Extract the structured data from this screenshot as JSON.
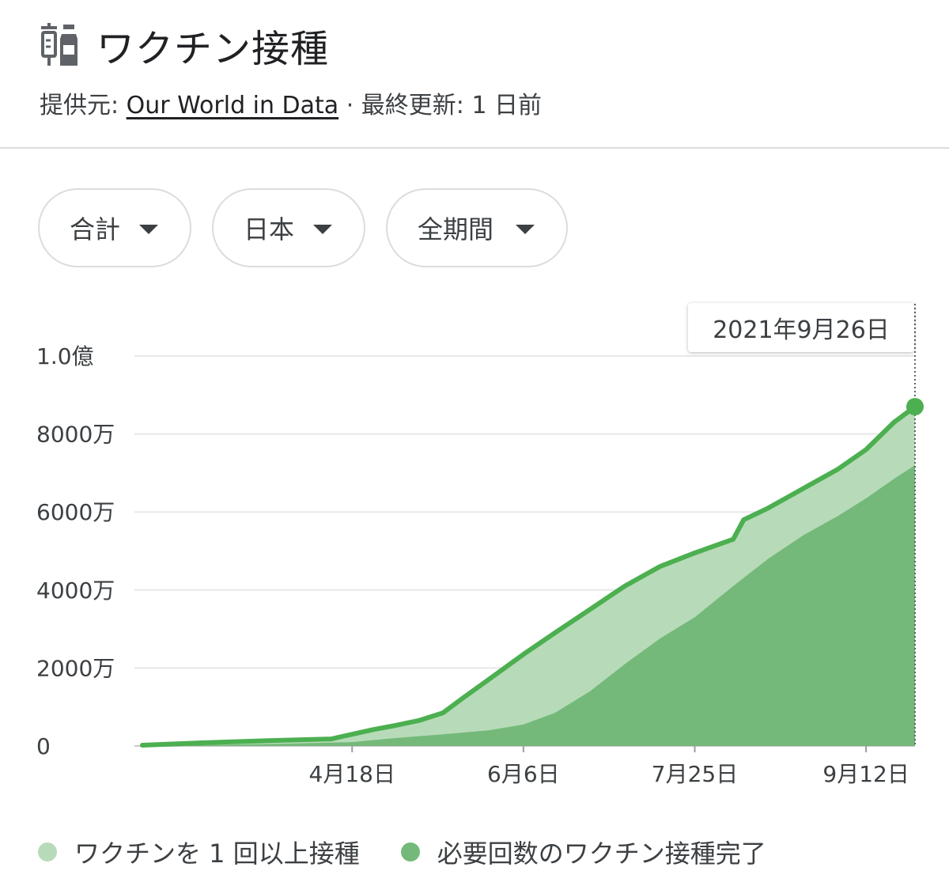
{
  "header": {
    "title": "ワクチン接種",
    "icon": "vaccine-icon",
    "source_prefix": "提供元: ",
    "source_name": "Our World in Data",
    "update_text": " · 最終更新: 1 日前"
  },
  "filters": [
    {
      "label": "合計"
    },
    {
      "label": "日本"
    },
    {
      "label": "全期間"
    }
  ],
  "tooltip": {
    "date": "2021年9月26日"
  },
  "colors": {
    "line": "#4caf50",
    "light_area": "#b7dbb8",
    "dark_area": "#74b979",
    "grid": "#e8e8e8"
  },
  "chart_data": {
    "type": "area",
    "title": "",
    "xlabel": "",
    "ylabel": "",
    "x_start": "2021-02-17",
    "x_end": "2021-09-26",
    "x_ticks": [
      {
        "date": "2021-04-18",
        "label": "4月18日"
      },
      {
        "date": "2021-06-06",
        "label": "6月6日"
      },
      {
        "date": "2021-07-25",
        "label": "7月25日"
      },
      {
        "date": "2021-09-12",
        "label": "9月12日"
      }
    ],
    "y_ticks": [
      {
        "value": 0,
        "label": "0"
      },
      {
        "value": 20000000,
        "label": "2000万"
      },
      {
        "value": 40000000,
        "label": "4000万"
      },
      {
        "value": 60000000,
        "label": "6000万"
      },
      {
        "value": 80000000,
        "label": "8000万"
      },
      {
        "value": 100000000,
        "label": "1.0億"
      }
    ],
    "ylim": [
      0,
      100000000
    ],
    "grid": true,
    "legend": "bottom",
    "series": [
      {
        "name": "ワクチンを 1 回以上接種",
        "dates": [
          "2021-02-17",
          "2021-03-06",
          "2021-03-26",
          "2021-04-12",
          "2021-04-18",
          "2021-04-24",
          "2021-04-30",
          "2021-05-07",
          "2021-05-14",
          "2021-05-20",
          "2021-05-27",
          "2021-06-06",
          "2021-06-15",
          "2021-06-25",
          "2021-07-05",
          "2021-07-15",
          "2021-07-25",
          "2021-08-05",
          "2021-08-08",
          "2021-08-15",
          "2021-08-25",
          "2021-09-04",
          "2021-09-12",
          "2021-09-20",
          "2021-09-26"
        ],
        "values": [
          200000,
          800000,
          1400000,
          1800000,
          3000000,
          4200000,
          5200000,
          6500000,
          8500000,
          12500000,
          17000000,
          23500000,
          29000000,
          35000000,
          41000000,
          46000000,
          49500000,
          53000000,
          58000000,
          61000000,
          66000000,
          71000000,
          76000000,
          83000000,
          87000000
        ]
      },
      {
        "name": "必要回数のワクチン接種完了",
        "dates": [
          "2021-02-17",
          "2021-03-26",
          "2021-04-18",
          "2021-04-30",
          "2021-05-14",
          "2021-05-27",
          "2021-06-06",
          "2021-06-15",
          "2021-06-25",
          "2021-07-05",
          "2021-07-15",
          "2021-07-25",
          "2021-08-05",
          "2021-08-15",
          "2021-08-25",
          "2021-09-04",
          "2021-09-12",
          "2021-09-20",
          "2021-09-26"
        ],
        "values": [
          0,
          500000,
          1000000,
          2000000,
          3000000,
          4000000,
          5500000,
          8500000,
          14000000,
          21000000,
          27500000,
          33000000,
          41000000,
          48000000,
          54000000,
          59000000,
          63500000,
          68500000,
          72000000
        ]
      }
    ]
  }
}
